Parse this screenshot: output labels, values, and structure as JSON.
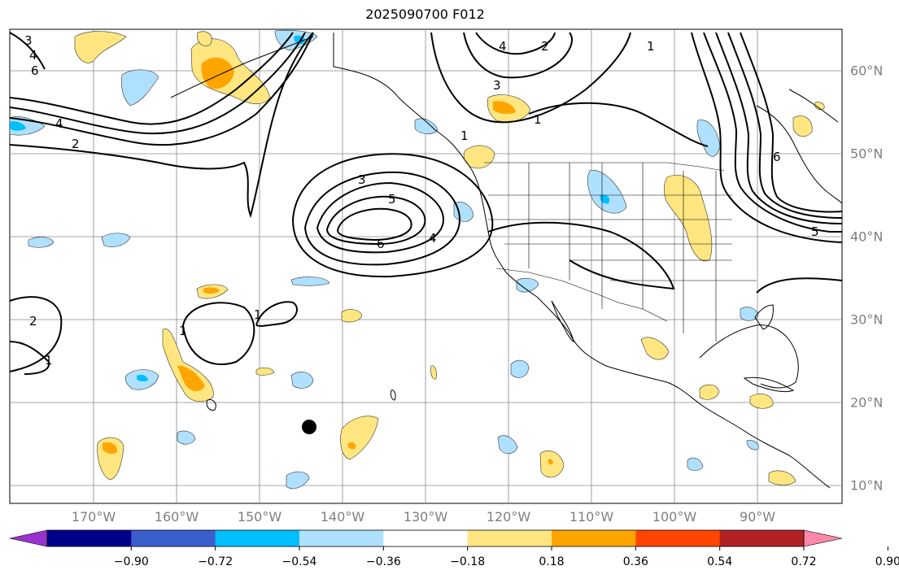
{
  "title": "2025090700 F012",
  "longitude_labels": [
    "170°W",
    "160°W",
    "150°W",
    "140°W",
    "130°W",
    "120°W",
    "110°W",
    "100°W",
    "90°W"
  ],
  "latitude_labels": [
    "60°N",
    "50°N",
    "40°N",
    "30°N",
    "20°N",
    "10°N"
  ],
  "contour_labels": [
    "1",
    "2",
    "3",
    "4",
    "5",
    "6"
  ],
  "colorbar": {
    "tick_labels": [
      "−0.90",
      "−0.72",
      "−0.54",
      "−0.36",
      "−0.18",
      "0.18",
      "0.36",
      "0.54",
      "0.72",
      "0.90"
    ],
    "colors": [
      "#9932cc",
      "#00008b",
      "#3a5fcd",
      "#00bfff",
      "#b0e0ff",
      "#ffffff",
      "#ffe680",
      "#ffa500",
      "#ff4500",
      "#b22222",
      "#ff88aa"
    ]
  },
  "map": {
    "land_color": "#ffffff",
    "ocean_color": "#ffffff",
    "grid_color": "#888888",
    "marker_color": "#000000"
  }
}
